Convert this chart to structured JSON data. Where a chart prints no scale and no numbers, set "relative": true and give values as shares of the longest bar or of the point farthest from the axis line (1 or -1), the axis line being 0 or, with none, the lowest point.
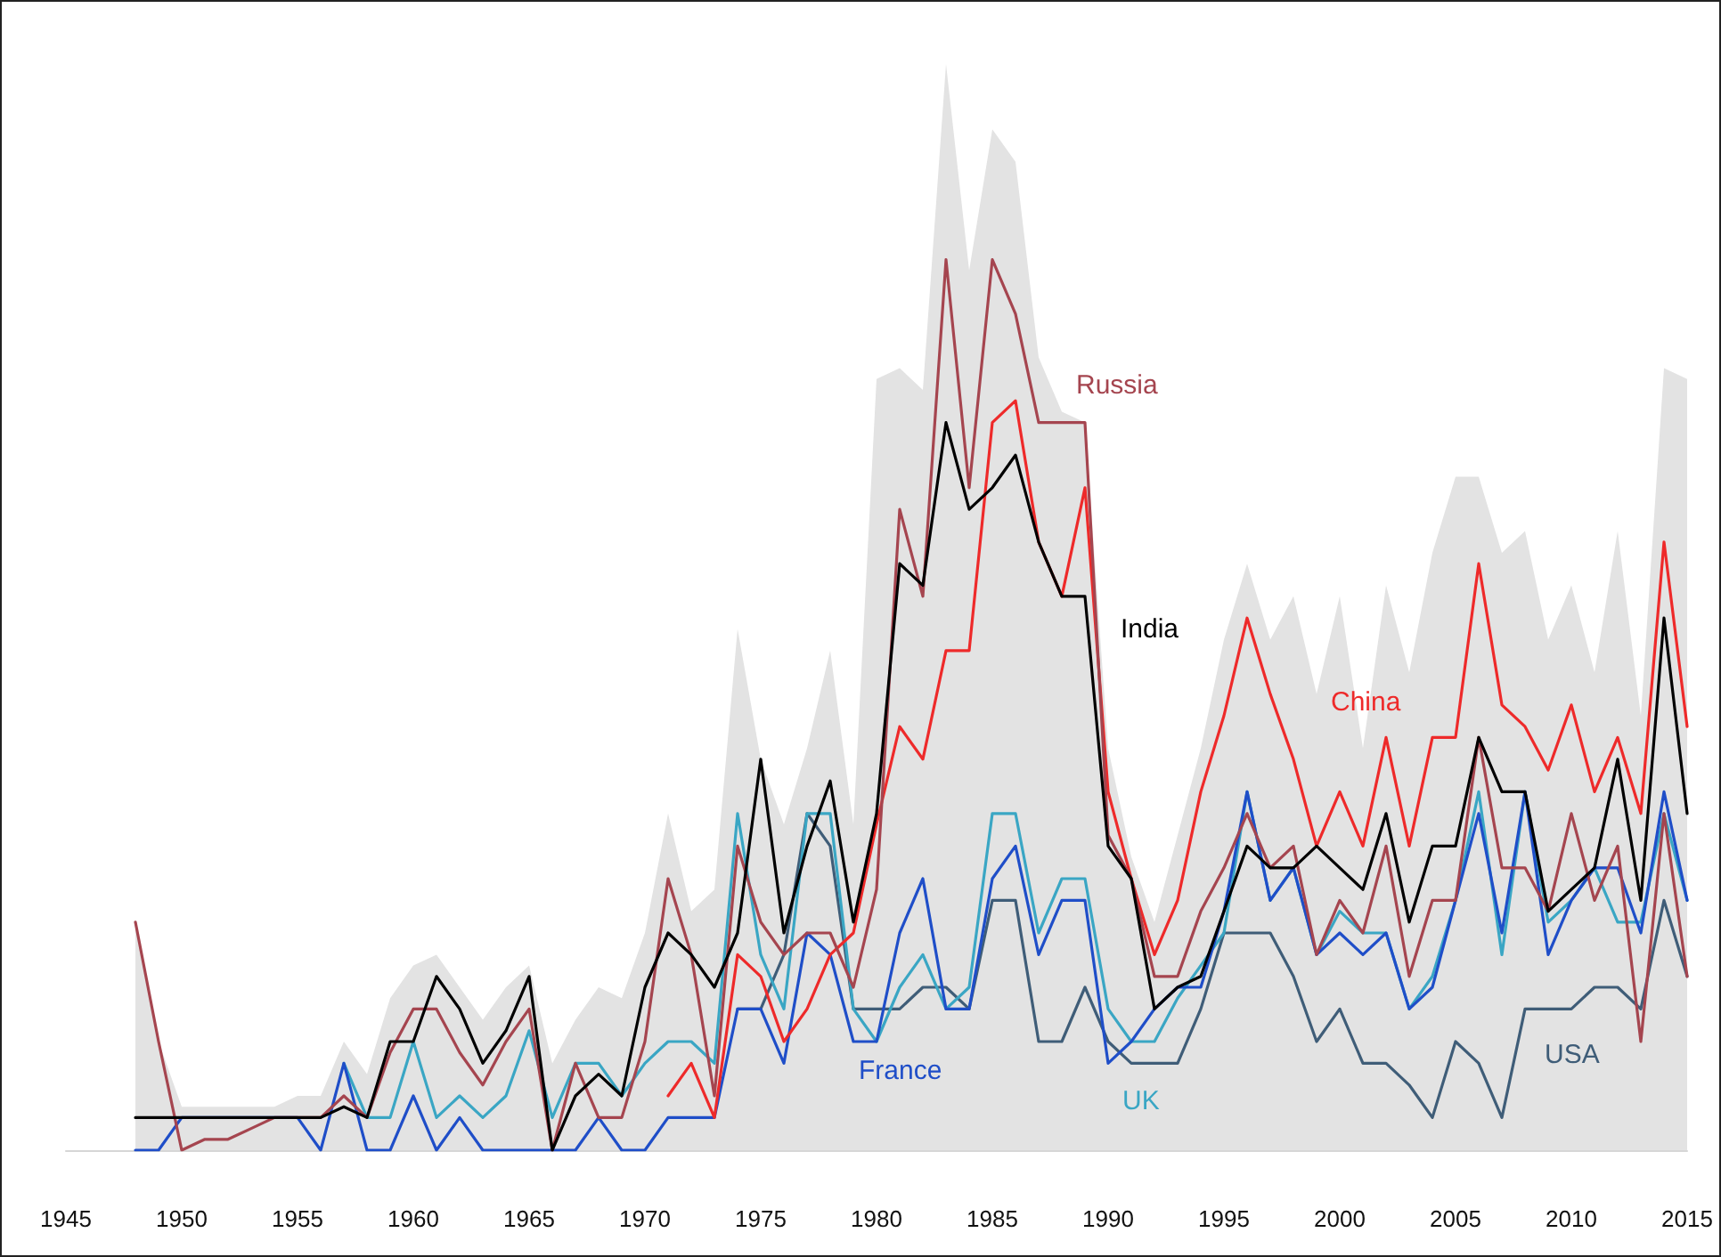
{
  "chart_data": {
    "type": "line",
    "relative": true,
    "x": [
      1948,
      1949,
      1950,
      1951,
      1952,
      1953,
      1954,
      1955,
      1956,
      1957,
      1958,
      1959,
      1960,
      1961,
      1962,
      1963,
      1964,
      1965,
      1966,
      1967,
      1968,
      1969,
      1970,
      1971,
      1972,
      1973,
      1974,
      1975,
      1976,
      1977,
      1978,
      1979,
      1980,
      1981,
      1982,
      1983,
      1984,
      1985,
      1986,
      1987,
      1988,
      1989,
      1990,
      1991,
      1992,
      1993,
      1994,
      1995,
      1996,
      1997,
      1998,
      1999,
      2000,
      2001,
      2002,
      2003,
      2004,
      2005,
      2006,
      2007,
      2008,
      2009,
      2010,
      2011,
      2012,
      2013,
      2014,
      2015
    ],
    "xlim": [
      1945,
      2015
    ],
    "xticks": [
      1945,
      1950,
      1955,
      1960,
      1965,
      1970,
      1975,
      1980,
      1985,
      1990,
      1995,
      2000,
      2005,
      2010,
      2015
    ],
    "grid": false,
    "legend": false,
    "marker": "none",
    "line_style": "solid",
    "series": [
      {
        "type": "area",
        "color": "#e3e3e3",
        "values": [
          0.21,
          0.1,
          0.04,
          0.04,
          0.04,
          0.04,
          0.04,
          0.05,
          0.05,
          0.1,
          0.07,
          0.14,
          0.17,
          0.18,
          0.15,
          0.12,
          0.15,
          0.17,
          0.08,
          0.12,
          0.15,
          0.14,
          0.2,
          0.31,
          0.22,
          0.24,
          0.48,
          0.36,
          0.3,
          0.37,
          0.46,
          0.3,
          0.71,
          0.72,
          0.7,
          1,
          0.81,
          0.94,
          0.91,
          0.73,
          0.68,
          0.67,
          0.37,
          0.27,
          0.21,
          0.29,
          0.37,
          0.47,
          0.54,
          0.47,
          0.51,
          0.42,
          0.51,
          0.37,
          0.52,
          0.44,
          0.55,
          0.62,
          0.62,
          0.55,
          0.57,
          0.47,
          0.52,
          0.44,
          0.57,
          0.4,
          0.72,
          0.71
        ]
      },
      {
        "name": "USA",
        "color": "#3f5d78",
        "values": [
          null,
          null,
          null,
          null,
          null,
          null,
          null,
          null,
          null,
          null,
          null,
          null,
          null,
          null,
          null,
          null,
          null,
          null,
          null,
          null,
          null,
          null,
          null,
          null,
          null,
          null,
          0.13,
          0.13,
          0.18,
          0.31,
          0.28,
          0.13,
          0.13,
          0.13,
          0.15,
          0.15,
          0.13,
          0.23,
          0.23,
          0.1,
          0.1,
          0.15,
          0.1,
          0.08,
          0.08,
          0.08,
          0.13,
          0.2,
          0.2,
          0.2,
          0.16,
          0.1,
          0.13,
          0.08,
          0.08,
          0.06,
          0.03,
          0.1,
          0.08,
          0.03,
          0.13,
          0.13,
          0.13,
          0.15,
          0.15,
          0.13,
          0.23,
          0.16
        ]
      },
      {
        "name": "UK",
        "color": "#3aa6c4",
        "values": [
          null,
          null,
          null,
          null,
          null,
          null,
          null,
          null,
          null,
          0.08,
          0.03,
          0.03,
          0.1,
          0.03,
          0.05,
          0.03,
          0.05,
          0.11,
          0.03,
          0.08,
          0.08,
          0.05,
          0.08,
          0.1,
          0.1,
          0.08,
          0.31,
          0.18,
          0.13,
          0.31,
          0.31,
          0.13,
          0.1,
          0.15,
          0.18,
          0.13,
          0.15,
          0.31,
          0.31,
          0.2,
          0.25,
          0.25,
          0.13,
          0.1,
          0.1,
          0.14,
          0.17,
          0.2,
          0.33,
          0.23,
          0.26,
          0.18,
          0.22,
          0.2,
          0.2,
          0.13,
          0.16,
          0.23,
          0.33,
          0.18,
          0.33,
          0.21,
          0.23,
          0.26,
          0.21,
          0.21,
          0.31,
          0.23
        ]
      },
      {
        "name": "France",
        "color": "#1f4ec8",
        "values": [
          0,
          0,
          0.03,
          0.03,
          0.03,
          0.03,
          0.03,
          0.03,
          0,
          0.08,
          0,
          0,
          0.05,
          0,
          0.03,
          0,
          0,
          0,
          0,
          0,
          0.03,
          0,
          0,
          0.03,
          0.03,
          0.03,
          0.13,
          0.13,
          0.08,
          0.2,
          0.18,
          0.1,
          0.1,
          0.2,
          0.25,
          0.13,
          0.13,
          0.25,
          0.28,
          0.18,
          0.23,
          0.23,
          0.08,
          0.1,
          0.13,
          0.15,
          0.15,
          0.22,
          0.33,
          0.23,
          0.26,
          0.18,
          0.2,
          0.18,
          0.2,
          0.13,
          0.15,
          0.23,
          0.31,
          0.2,
          0.33,
          0.18,
          0.23,
          0.26,
          0.26,
          0.2,
          0.33,
          0.23
        ]
      },
      {
        "name": "China",
        "color": "#ee2a2a",
        "values": [
          null,
          null,
          null,
          null,
          null,
          null,
          null,
          null,
          null,
          null,
          null,
          null,
          null,
          null,
          null,
          null,
          null,
          null,
          null,
          null,
          null,
          null,
          null,
          0.05,
          0.08,
          0.03,
          0.18,
          0.16,
          0.1,
          0.13,
          0.18,
          0.2,
          0.3,
          0.39,
          0.36,
          0.46,
          0.46,
          0.67,
          0.69,
          0.56,
          0.51,
          0.61,
          0.33,
          0.25,
          0.18,
          0.23,
          0.33,
          0.4,
          0.49,
          0.42,
          0.36,
          0.28,
          0.33,
          0.28,
          0.38,
          0.28,
          0.38,
          0.38,
          0.54,
          0.41,
          0.39,
          0.35,
          0.41,
          0.33,
          0.38,
          0.31,
          0.56,
          0.39
        ]
      },
      {
        "name": "Russia",
        "color": "#a5454f",
        "values": [
          0.21,
          0.1,
          0,
          0.01,
          0.01,
          0.02,
          0.03,
          0.03,
          0.03,
          0.05,
          0.03,
          0.09,
          0.13,
          0.13,
          0.09,
          0.06,
          0.1,
          0.13,
          0,
          0.08,
          0.03,
          0.03,
          0.1,
          0.25,
          0.18,
          0.05,
          0.28,
          0.21,
          0.18,
          0.2,
          0.2,
          0.15,
          0.24,
          0.59,
          0.51,
          0.82,
          0.61,
          0.82,
          0.77,
          0.67,
          0.67,
          0.67,
          0.29,
          0.25,
          0.16,
          0.16,
          0.22,
          0.26,
          0.31,
          0.26,
          0.28,
          0.18,
          0.23,
          0.2,
          0.28,
          0.16,
          0.23,
          0.23,
          0.38,
          0.26,
          0.26,
          0.22,
          0.31,
          0.23,
          0.28,
          0.1,
          0.31,
          0.16
        ]
      },
      {
        "name": "India",
        "color": "#000000",
        "values": [
          0.03,
          0.03,
          0.03,
          0.03,
          0.03,
          0.03,
          0.03,
          0.03,
          0.03,
          0.04,
          0.03,
          0.1,
          0.1,
          0.16,
          0.13,
          0.08,
          0.11,
          0.16,
          0,
          0.05,
          0.07,
          0.05,
          0.15,
          0.2,
          0.18,
          0.15,
          0.2,
          0.36,
          0.2,
          0.28,
          0.34,
          0.21,
          0.31,
          0.54,
          0.52,
          0.67,
          0.59,
          0.61,
          0.64,
          0.56,
          0.51,
          0.51,
          0.28,
          0.25,
          0.13,
          0.15,
          0.16,
          0.22,
          0.28,
          0.26,
          0.26,
          0.28,
          0.26,
          0.24,
          0.31,
          0.21,
          0.28,
          0.28,
          0.38,
          0.33,
          0.33,
          0.22,
          0.24,
          0.26,
          0.36,
          0.23,
          0.49,
          0.31
        ]
      }
    ]
  }
}
